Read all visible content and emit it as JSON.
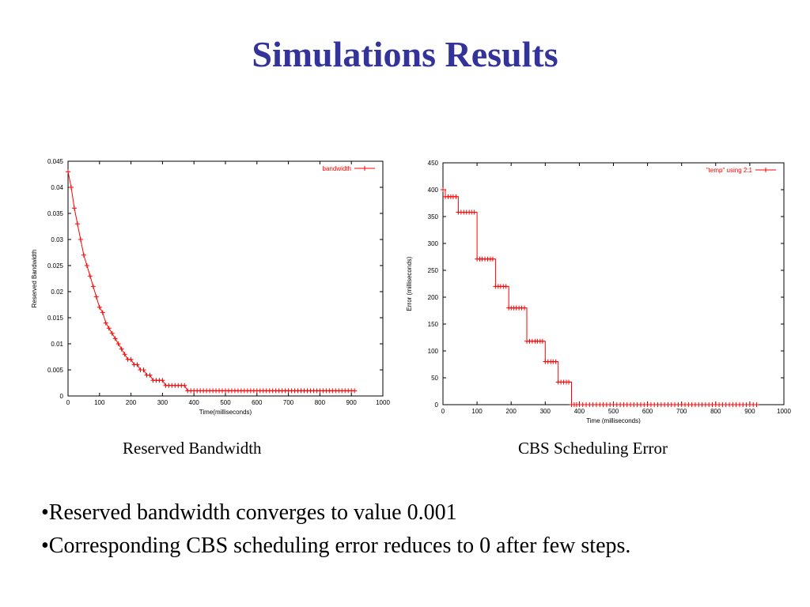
{
  "slide": {
    "title": "Simulations Results",
    "captions": [
      "Reserved Bandwidth",
      "CBS Scheduling Error"
    ],
    "bullets": [
      "•Reserved bandwidth converges to value 0.001",
      "•Corresponding CBS scheduling error reduces to 0 after few steps."
    ]
  },
  "chart_data": [
    {
      "type": "line",
      "xlabel": "Time(milliseconds)",
      "ylabel": "Reserved Bandwidth",
      "xlim": [
        0,
        1000
      ],
      "ylim": [
        0,
        0.045
      ],
      "xticks": [
        "0",
        "100",
        "200",
        "300",
        "400",
        "500",
        "600",
        "700",
        "800",
        "900",
        "1000"
      ],
      "yticks": [
        "0",
        "0.005",
        "0.01",
        "0.015",
        "0.02",
        "0.025",
        "0.03",
        "0.035",
        "0.04",
        "0.045"
      ],
      "legend_position": "top-right",
      "color": "#ff0000",
      "step": false,
      "series": [
        {
          "name": "bandwidth",
          "x": [
            0,
            10,
            20,
            30,
            40,
            50,
            60,
            70,
            80,
            90,
            100,
            110,
            120,
            130,
            140,
            150,
            160,
            170,
            180,
            190,
            200,
            210,
            220,
            230,
            240,
            250,
            260,
            270,
            280,
            290,
            300,
            310,
            320,
            330,
            340,
            350,
            360,
            370,
            380,
            390,
            400,
            410,
            420,
            430,
            440,
            450,
            460,
            470,
            480,
            490,
            500,
            510,
            520,
            530,
            540,
            550,
            560,
            570,
            580,
            590,
            600,
            610,
            620,
            630,
            640,
            650,
            660,
            670,
            680,
            690,
            700,
            710,
            720,
            730,
            740,
            750,
            760,
            770,
            780,
            790,
            800,
            810,
            820,
            830,
            840,
            850,
            860,
            870,
            880,
            890,
            900,
            910
          ],
          "y": [
            0.043,
            0.04,
            0.036,
            0.033,
            0.03,
            0.027,
            0.025,
            0.023,
            0.021,
            0.019,
            0.017,
            0.016,
            0.014,
            0.013,
            0.012,
            0.011,
            0.01,
            0.009,
            0.008,
            0.007,
            0.007,
            0.006,
            0.006,
            0.005,
            0.005,
            0.004,
            0.004,
            0.003,
            0.003,
            0.003,
            0.003,
            0.002,
            0.002,
            0.002,
            0.002,
            0.002,
            0.002,
            0.002,
            0.001,
            0.001,
            0.001,
            0.001,
            0.001,
            0.001,
            0.001,
            0.001,
            0.001,
            0.001,
            0.001,
            0.001,
            0.001,
            0.001,
            0.001,
            0.001,
            0.001,
            0.001,
            0.001,
            0.001,
            0.001,
            0.001,
            0.001,
            0.001,
            0.001,
            0.001,
            0.001,
            0.001,
            0.001,
            0.001,
            0.001,
            0.001,
            0.001,
            0.001,
            0.001,
            0.001,
            0.001,
            0.001,
            0.001,
            0.001,
            0.001,
            0.001,
            0.001,
            0.001,
            0.001,
            0.001,
            0.001,
            0.001,
            0.001,
            0.001,
            0.001,
            0.001,
            0.001,
            0.001
          ]
        }
      ]
    },
    {
      "type": "line",
      "xlabel": "Time (milliseconds)",
      "ylabel": "Error (milliseconds)",
      "xlim": [
        0,
        1000
      ],
      "ylim": [
        0,
        450
      ],
      "xticks": [
        "0",
        "100",
        "200",
        "300",
        "400",
        "500",
        "600",
        "700",
        "800",
        "900",
        "1000"
      ],
      "yticks": [
        "0",
        "50",
        "100",
        "150",
        "200",
        "250",
        "300",
        "350",
        "400",
        "450"
      ],
      "legend_position": "top-right",
      "color": "#ff0000",
      "step": true,
      "series": [
        {
          "name": "\"temp\" using 2:1",
          "x": [
            0,
            7,
            15,
            23,
            30,
            38,
            45,
            53,
            61,
            69,
            77,
            84,
            92,
            100,
            108,
            115,
            123,
            131,
            139,
            146,
            154,
            162,
            169,
            177,
            185,
            193,
            200,
            208,
            215,
            223,
            231,
            239,
            246,
            254,
            262,
            270,
            277,
            285,
            292,
            300,
            308,
            316,
            323,
            331,
            338,
            346,
            354,
            362,
            369,
            377,
            385,
            392,
            400,
            410,
            420,
            430,
            440,
            450,
            460,
            470,
            480,
            490,
            500,
            510,
            520,
            530,
            540,
            550,
            560,
            570,
            580,
            590,
            600,
            610,
            620,
            630,
            640,
            650,
            660,
            670,
            680,
            690,
            700,
            710,
            720,
            730,
            740,
            750,
            760,
            770,
            780,
            790,
            800,
            810,
            820,
            830,
            840,
            850,
            860,
            870,
            880,
            890,
            900,
            910,
            920
          ],
          "y": [
            400,
            387,
            387,
            387,
            387,
            387,
            358,
            358,
            358,
            358,
            358,
            358,
            358,
            271,
            271,
            271,
            271,
            271,
            271,
            271,
            220,
            220,
            220,
            220,
            220,
            180,
            180,
            180,
            180,
            180,
            180,
            180,
            118,
            118,
            118,
            118,
            118,
            118,
            118,
            80,
            80,
            80,
            80,
            80,
            42,
            42,
            42,
            42,
            42,
            0,
            0,
            0,
            0,
            0,
            0,
            0,
            0,
            0,
            0,
            0,
            0,
            0,
            0,
            0,
            0,
            0,
            0,
            0,
            0,
            0,
            0,
            0,
            0,
            0,
            0,
            0,
            0,
            0,
            0,
            0,
            0,
            0,
            0,
            0,
            0,
            0,
            0,
            0,
            0,
            0,
            0,
            0,
            0,
            0,
            0,
            0,
            0,
            0,
            0,
            0,
            0,
            0,
            0,
            0,
            0
          ]
        }
      ]
    }
  ]
}
